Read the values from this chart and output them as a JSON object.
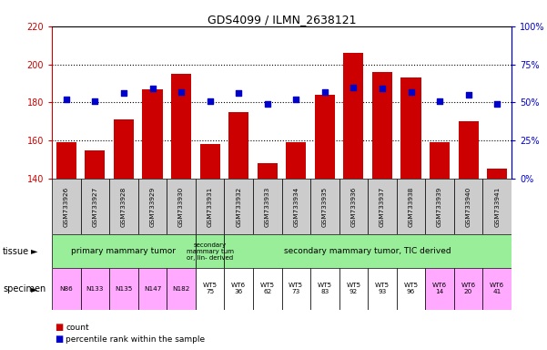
{
  "title": "GDS4099 / ILMN_2638121",
  "samples": [
    "GSM733926",
    "GSM733927",
    "GSM733928",
    "GSM733929",
    "GSM733930",
    "GSM733931",
    "GSM733932",
    "GSM733933",
    "GSM733934",
    "GSM733935",
    "GSM733936",
    "GSM733937",
    "GSM733938",
    "GSM733939",
    "GSM733940",
    "GSM733941"
  ],
  "counts": [
    159,
    155,
    171,
    187,
    195,
    158,
    175,
    148,
    159,
    184,
    206,
    196,
    193,
    159,
    170,
    145
  ],
  "percentile_ranks": [
    52,
    51,
    56,
    59,
    57,
    51,
    56,
    49,
    52,
    57,
    60,
    59,
    57,
    51,
    55,
    49
  ],
  "ylim_left": [
    140,
    220
  ],
  "ylim_right": [
    0,
    100
  ],
  "yticks_left": [
    140,
    160,
    180,
    200,
    220
  ],
  "yticks_right": [
    0,
    25,
    50,
    75,
    100
  ],
  "yticklabels_right": [
    "0%",
    "25%",
    "50%",
    "75%",
    "100%"
  ],
  "bar_color": "#cc0000",
  "dot_color": "#0000cc",
  "bar_width": 0.7,
  "specimen_labels": [
    "N86",
    "N133",
    "N135",
    "N147",
    "N182",
    "WT5\n75",
    "WT6\n36",
    "WT5\n62",
    "WT5\n73",
    "WT5\n83",
    "WT5\n92",
    "WT5\n93",
    "WT5\n96",
    "WT6\n14",
    "WT6\n20",
    "WT6\n41"
  ],
  "specimen_colors": [
    "#ffaaff",
    "#ffaaff",
    "#ffaaff",
    "#ffaaff",
    "#ffaaff",
    "#ffffff",
    "#ffffff",
    "#ffffff",
    "#ffffff",
    "#ffffff",
    "#ffffff",
    "#ffffff",
    "#ffffff",
    "#ffaaff",
    "#ffaaff",
    "#ffaaff"
  ],
  "xticklabel_bg": "#cccccc",
  "tissue_color": "#99ee99",
  "legend_count_color": "#cc0000",
  "legend_dot_color": "#0000cc"
}
